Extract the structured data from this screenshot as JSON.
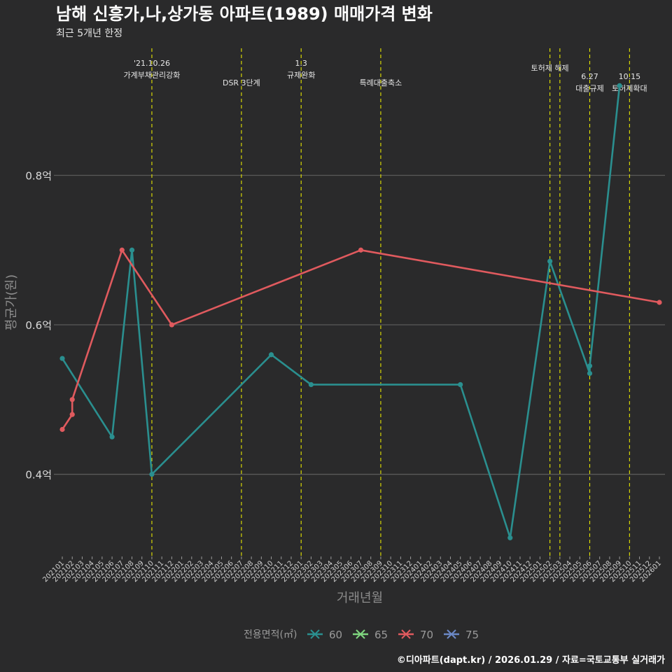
{
  "chart_data": {
    "type": "line",
    "title": "남해 신흥가,나,상가동 아파트(1989) 매매가격 변화",
    "subtitle": "최근 5개년 한정",
    "xlabel": "거래년월",
    "ylabel": "평균가(원)",
    "ylim": [
      0.29,
      0.97
    ],
    "y_ticks": [
      0.4,
      0.6,
      0.8
    ],
    "y_tick_labels": [
      "0.4억",
      "0.6억",
      "0.8억"
    ],
    "categories": [
      "202101",
      "202102",
      "202103",
      "202104",
      "202105",
      "202106",
      "202107",
      "202108",
      "202109",
      "202110",
      "202111",
      "202112",
      "202201",
      "202202",
      "202203",
      "202204",
      "202205",
      "202206",
      "202207",
      "202208",
      "202209",
      "202210",
      "202211",
      "202212",
      "202301",
      "202302",
      "202303",
      "202304",
      "202305",
      "202306",
      "202307",
      "202308",
      "202309",
      "202310",
      "202311",
      "202312",
      "202401",
      "202402",
      "202403",
      "202404",
      "202405",
      "202406",
      "202407",
      "202408",
      "202409",
      "202410",
      "202411",
      "202412",
      "202501",
      "202502",
      "202503",
      "202504",
      "202505",
      "202506",
      "202507",
      "202508",
      "202509",
      "202510",
      "202511",
      "202512",
      "202601"
    ],
    "series": [
      {
        "name": "60",
        "color": "#2a8f8f",
        "points": [
          {
            "x": "202101",
            "y": 0.555
          },
          {
            "x": "202106",
            "y": 0.45
          },
          {
            "x": "202108",
            "y": 0.7
          },
          {
            "x": "202110",
            "y": 0.4
          },
          {
            "x": "202210",
            "y": 0.56
          },
          {
            "x": "202302",
            "y": 0.52
          },
          {
            "x": "202405",
            "y": 0.52
          },
          {
            "x": "202410",
            "y": 0.315
          },
          {
            "x": "202502",
            "y": 0.685
          },
          {
            "x": "202506",
            "y": 0.535
          },
          {
            "x": "202506",
            "y": 0.545
          },
          {
            "x": "202509",
            "y": 0.92
          }
        ]
      },
      {
        "name": "65",
        "color": "#7fd67f",
        "points": []
      },
      {
        "name": "70",
        "color": "#e05a5e",
        "points": [
          {
            "x": "202101",
            "y": 0.46
          },
          {
            "x": "202102",
            "y": 0.48
          },
          {
            "x": "202102",
            "y": 0.5
          },
          {
            "x": "202107",
            "y": 0.7
          },
          {
            "x": "202112",
            "y": 0.6
          },
          {
            "x": "202307",
            "y": 0.7
          },
          {
            "x": "202601",
            "y": 0.63
          }
        ]
      },
      {
        "name": "75",
        "color": "#6b88c6",
        "points": []
      }
    ],
    "events": [
      {
        "x": "202110",
        "lines": [
          "'21.10.26",
          "가계부채관리강화"
        ],
        "row": 1
      },
      {
        "x": "202207",
        "lines": [
          "DSR 3단계"
        ],
        "row": 2
      },
      {
        "x": "202301",
        "lines": [
          "1.3",
          "규제완화"
        ],
        "row": 1
      },
      {
        "x": "202309",
        "lines": [
          "특례대출축소"
        ],
        "row": 2
      },
      {
        "x": "202502",
        "lines": [
          "토허제 해제"
        ],
        "row": 0
      },
      {
        "x": "202503",
        "lines": [],
        "row": 0
      },
      {
        "x": "202506",
        "lines": [
          "6.27",
          "대출규제"
        ],
        "row": 3
      },
      {
        "x": "202510",
        "lines": [
          "10.15",
          "토허제확대"
        ],
        "row": 3
      }
    ],
    "legend": {
      "title": "전용면적(㎡)",
      "position": "bottom",
      "items": [
        "60",
        "65",
        "70",
        "75"
      ]
    },
    "caption": "©디아파트(dapt.kr) / 2026.01.29 / 자료=국토교통부 실거래가",
    "colors": {
      "background": "#2a2a2b",
      "grid": "#5a5a5a",
      "event_line": "#e6e600"
    }
  }
}
